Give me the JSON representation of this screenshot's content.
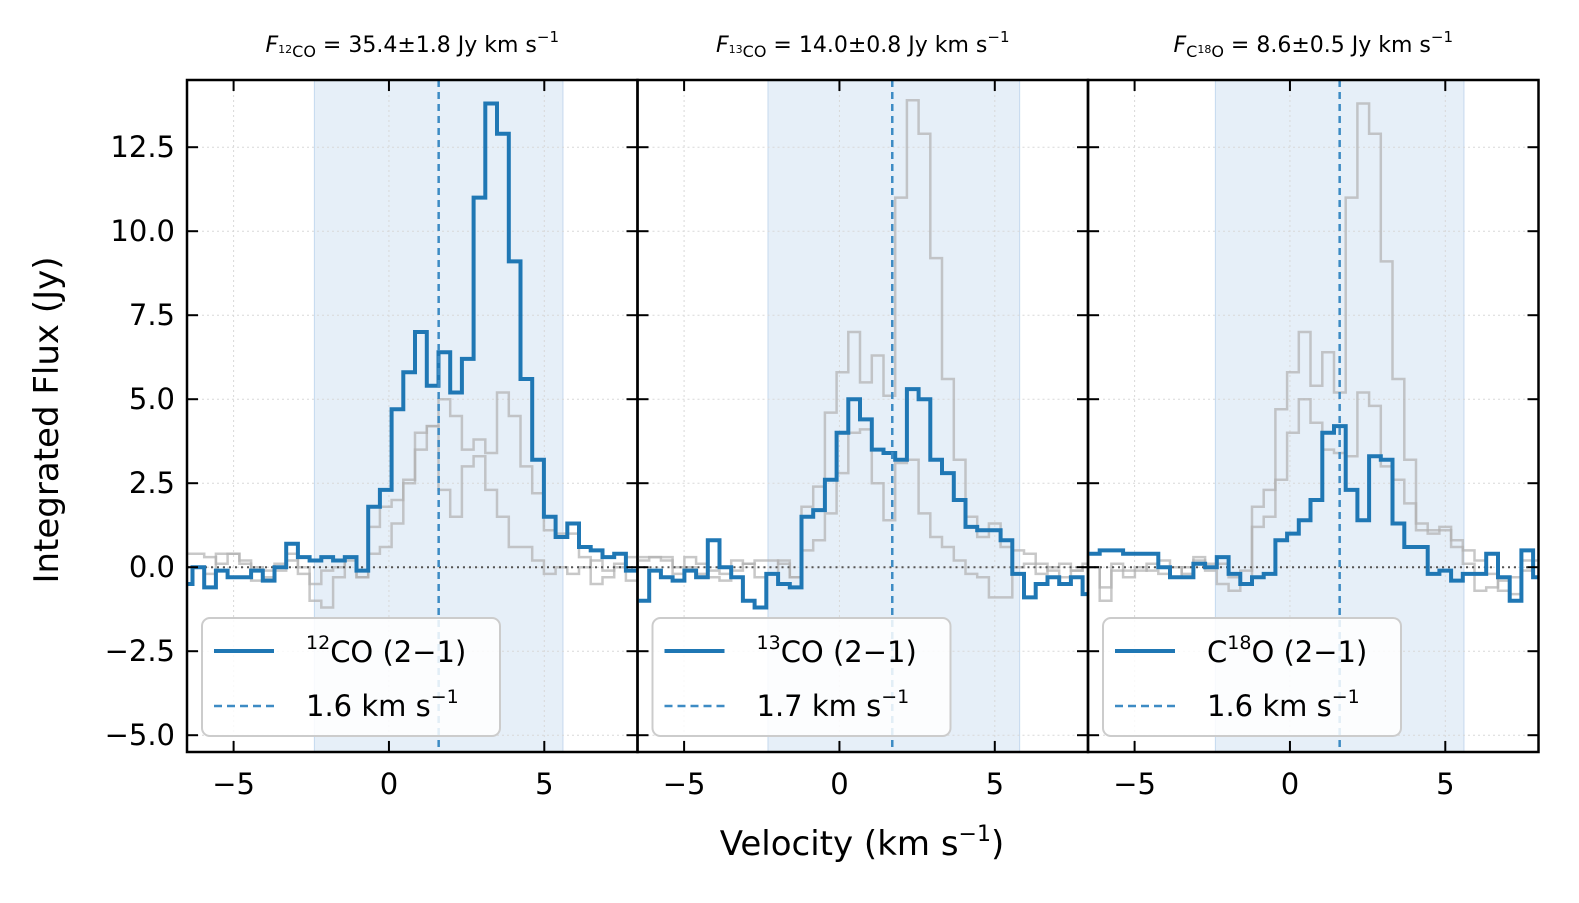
{
  "figure": {
    "ylabel": "Integrated Flux (Jy)",
    "xlabel": "Velocity (km s",
    "xlabel_sup": "−1",
    "xlabel_close": ")"
  },
  "colors": {
    "line": "#1f77b4",
    "ghost": "#b0b0b0",
    "shade": "#e6eff8",
    "zero": "#555555"
  },
  "axes": {
    "xlim": [
      -6.5,
      8.0
    ],
    "ylim": [
      -5.5,
      14.5
    ],
    "xticks": [
      -5,
      0,
      5
    ],
    "xtick_labels": [
      "−5",
      "0",
      "5"
    ],
    "yticks": [
      -5.0,
      -2.5,
      0.0,
      2.5,
      5.0,
      7.5,
      10.0,
      12.5
    ],
    "ytick_labels": [
      "−5.0",
      "−2.5",
      "0.0",
      "2.5",
      "5.0",
      "7.5",
      "10.0",
      "12.5"
    ],
    "grid": true
  },
  "chart_data": [
    {
      "type": "line",
      "title_prefix": "F",
      "title_sub_sup": "12",
      "title_sub": "CO",
      "title_value": " = 35.4±1.8 Jy km s",
      "title_sup": "−1",
      "legend": {
        "line_pre": "",
        "line_sup": "12",
        "line_main": "CO (2−1)",
        "vline_label": "1.6 km s",
        "vline_sup": "−1"
      },
      "shade_range": [
        -2.4,
        5.6
      ],
      "vline": 1.6,
      "series": [
        {
          "name": "12CO (2−1)",
          "x0": -6.7,
          "dx": 0.377,
          "values": [
            -0.5,
            0.0,
            -0.6,
            -0.1,
            -0.3,
            -0.3,
            -0.1,
            -0.4,
            0.0,
            0.7,
            0.3,
            0.2,
            0.3,
            0.2,
            0.3,
            -0.1,
            1.8,
            2.3,
            4.7,
            5.8,
            7.0,
            5.4,
            6.4,
            5.2,
            6.2,
            11.0,
            13.8,
            12.9,
            9.1,
            5.6,
            3.2,
            1.5,
            0.9,
            1.3,
            0.6,
            0.5,
            0.3,
            0.4,
            -0.1,
            -0.1,
            -0.3,
            -0.1,
            0.1
          ]
        }
      ],
      "ghosts": [
        {
          "name": "13CO (2−1)",
          "x0": -6.7,
          "dx": 0.377,
          "values": [
            0.0,
            0.0,
            -0.2,
            0.4,
            0.4,
            0.1,
            -0.4,
            -0.1,
            0.1,
            0.4,
            -0.2,
            -1.0,
            -1.2,
            -0.3,
            0.2,
            -0.3,
            1.2,
            1.8,
            2.0,
            2.6,
            3.5,
            4.2,
            5.0,
            4.5,
            3.5,
            3.8,
            3.4,
            5.2,
            4.5,
            3.0,
            2.2,
            1.1,
            1.0,
            1.0,
            0.3,
            -0.5,
            -0.3,
            0.0,
            -0.4,
            -0.1,
            -0.1,
            0.2,
            0.2
          ]
        },
        {
          "name": "C18O (2−1)",
          "x0": -6.7,
          "dx": 0.377,
          "values": [
            0.4,
            0.4,
            0.3,
            0.1,
            0.4,
            0.2,
            0.0,
            -0.3,
            -0.1,
            0.2,
            0.0,
            -0.5,
            -0.1,
            0.0,
            0.3,
            -0.3,
            0.4,
            0.6,
            1.3,
            2.5,
            4.0,
            4.2,
            2.3,
            1.5,
            3.0,
            3.3,
            2.3,
            1.5,
            0.6,
            0.6,
            0.2,
            -0.2,
            0.0,
            -0.2,
            0.0,
            0.2,
            -0.1,
            0.1,
            0.3,
            -0.2,
            0.2,
            0.0,
            0.1
          ]
        }
      ]
    },
    {
      "type": "line",
      "title_prefix": "F",
      "title_sub_sup": "13",
      "title_sub": "CO",
      "title_value": " = 14.0±0.8 Jy km s",
      "title_sup": "−1",
      "legend": {
        "line_pre": "",
        "line_sup": "13",
        "line_main": "CO (2−1)",
        "vline_label": "1.7 km s",
        "vline_sup": "−1"
      },
      "shade_range": [
        -2.3,
        5.8
      ],
      "vline": 1.7,
      "series": [
        {
          "name": "13CO (2−1)",
          "x0": -6.5,
          "dx": 0.377,
          "values": [
            -1.0,
            -0.1,
            -0.3,
            -0.4,
            -0.1,
            -0.3,
            0.8,
            0.0,
            -0.3,
            -1.0,
            -1.2,
            -0.2,
            -0.5,
            -0.6,
            1.5,
            1.7,
            2.6,
            4.0,
            5.0,
            4.4,
            3.5,
            3.4,
            3.2,
            5.3,
            5.0,
            3.2,
            2.8,
            2.0,
            1.2,
            1.1,
            1.1,
            0.8,
            -0.2,
            -0.9,
            -0.5,
            -0.3,
            -0.5,
            -0.3,
            -0.8,
            0.3,
            -0.3,
            0.5,
            0.3
          ]
        }
      ],
      "ghosts": [
        {
          "name": "12CO (2−1)",
          "x0": -6.5,
          "dx": 0.377,
          "values": [
            0.2,
            0.3,
            0.3,
            -0.2,
            0.0,
            -0.2,
            -0.3,
            -0.4,
            0.2,
            0.1,
            0.2,
            0.2,
            0.1,
            -0.3,
            1.8,
            2.4,
            4.6,
            5.8,
            7.0,
            5.5,
            6.3,
            5.1,
            11.0,
            13.9,
            12.9,
            9.2,
            5.6,
            3.2,
            1.5,
            0.9,
            1.3,
            0.6,
            0.5,
            0.4,
            0.1,
            -0.1,
            -0.3,
            -0.1,
            0.0,
            -0.2,
            0.0,
            0.0,
            0.0
          ]
        },
        {
          "name": "C18O (2−1)",
          "x0": -6.5,
          "dx": 0.377,
          "values": [
            0.3,
            0.3,
            0.2,
            0.0,
            0.3,
            0.1,
            -0.1,
            -0.2,
            -0.1,
            0.1,
            -0.3,
            -0.2,
            0.2,
            -0.3,
            0.5,
            0.8,
            1.6,
            2.8,
            4.0,
            4.1,
            2.5,
            1.4,
            3.1,
            3.2,
            1.6,
            0.9,
            0.6,
            0.2,
            -0.2,
            -0.3,
            -0.9,
            -0.9,
            0.0,
            0.1,
            -0.2,
            0.0,
            0.1,
            -0.1,
            0.1,
            0.0,
            0.1,
            0.0,
            0.0
          ]
        }
      ]
    },
    {
      "type": "line",
      "title_prefix": "F",
      "title_sub_sup": "",
      "title_sub": "C",
      "title_sub2_sup": "18",
      "title_sub2": "O",
      "title_value": " = 8.6±0.5 Jy km s",
      "title_sup": "−1",
      "legend": {
        "line_pre": "C",
        "line_sup": "18",
        "line_main": "O (2−1)",
        "vline_label": "1.6 km s",
        "vline_sup": "−1"
      },
      "shade_range": [
        -2.4,
        5.6
      ],
      "vline": 1.6,
      "series": [
        {
          "name": "C18O (2−1)",
          "x0": -6.5,
          "dx": 0.377,
          "values": [
            0.4,
            0.5,
            0.5,
            0.4,
            0.4,
            0.4,
            0.0,
            -0.3,
            -0.3,
            0.1,
            0.0,
            0.3,
            -0.2,
            -0.5,
            -0.3,
            -0.2,
            0.8,
            1.0,
            1.4,
            2.0,
            4.0,
            4.2,
            2.3,
            1.4,
            3.3,
            3.2,
            1.3,
            0.6,
            0.6,
            -0.2,
            -0.1,
            -0.4,
            -0.2,
            -0.2,
            0.4,
            -0.3,
            -1.0,
            0.5,
            -0.3,
            -0.3,
            -0.5,
            0.3,
            -0.3
          ]
        }
      ],
      "ghosts": [
        {
          "name": "12CO (2−1)",
          "x0": -6.5,
          "dx": 0.377,
          "values": [
            0.0,
            -1.0,
            -0.1,
            -0.3,
            -0.1,
            0.1,
            0.2,
            0.0,
            -0.2,
            0.3,
            0.1,
            0.1,
            -0.3,
            -0.1,
            1.8,
            2.3,
            4.7,
            5.8,
            7.0,
            5.4,
            6.4,
            5.2,
            11.0,
            13.8,
            12.9,
            9.1,
            5.6,
            3.2,
            1.3,
            1.0,
            1.2,
            0.6,
            0.5,
            0.2,
            -0.2,
            -0.7,
            -0.8,
            0.2,
            -0.3,
            -0.4,
            -0.2,
            0.0,
            0.0
          ]
        },
        {
          "name": "13CO (2−1)",
          "x0": -6.5,
          "dx": 0.377,
          "values": [
            0.0,
            -0.6,
            0.1,
            -0.1,
            0.0,
            -0.1,
            -0.2,
            -0.3,
            0.0,
            0.2,
            -0.1,
            -0.5,
            -0.7,
            -0.5,
            1.2,
            1.5,
            2.6,
            4.0,
            5.0,
            4.3,
            3.5,
            3.4,
            3.3,
            5.2,
            4.8,
            3.0,
            2.6,
            1.9,
            1.1,
            1.1,
            1.1,
            0.8,
            0.1,
            -0.7,
            -0.6,
            -0.4,
            -0.3,
            -0.1,
            0.2,
            0.0,
            0.0,
            0.0,
            0.0
          ]
        }
      ]
    }
  ]
}
